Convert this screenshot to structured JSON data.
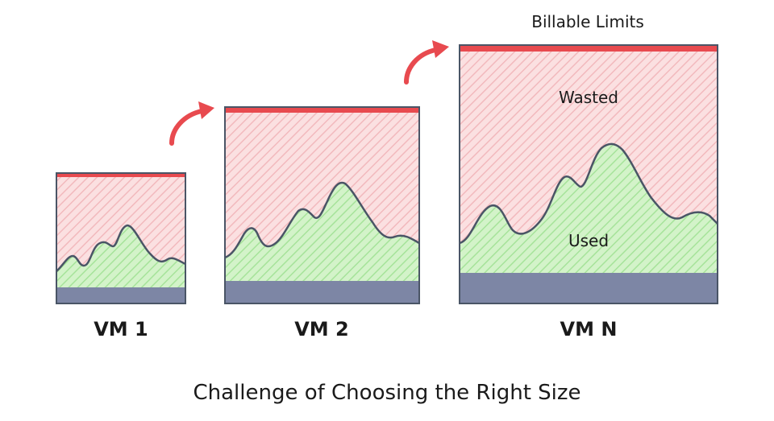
{
  "billable_limits_label": "Billable Limits",
  "wasted_label": "Wasted",
  "used_label": "Used",
  "caption": "Challenge of Choosing the Right Size",
  "vms": [
    {
      "label": "VM 1"
    },
    {
      "label": "VM 2"
    },
    {
      "label": "VM N"
    }
  ],
  "colors": {
    "limit_bar": "#e84a4f",
    "wasted_fill": "#fbe0e1",
    "wasted_hatch": "#f2b9bd",
    "used_fill": "#d3f3c9",
    "used_hatch": "#a6e39a",
    "base": "#7d86a5",
    "outline": "#4a5566",
    "arrow": "#e84a4f"
  }
}
